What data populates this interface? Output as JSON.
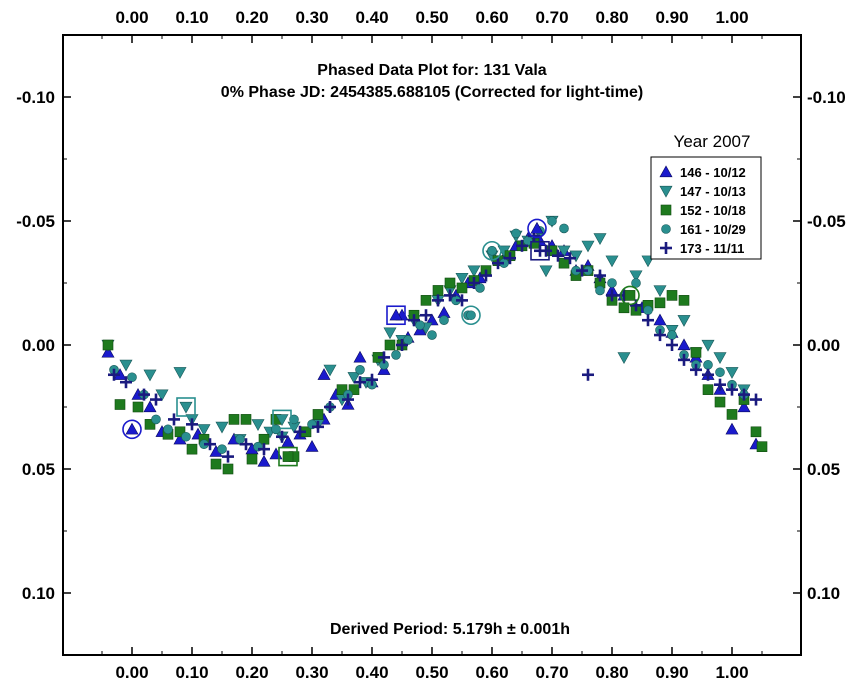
{
  "chart_data": {
    "type": "scatter",
    "title": "Phased Data Plot for: 131 Vala",
    "subtitle": "0% Phase JD:  2454385.688105   (Corrected for light-time)",
    "annotation": "Derived Period: 5.179h ± 0.001h",
    "xlabel": "",
    "ylabel": "",
    "xlim": [
      -0.115,
      1.115
    ],
    "ylim": [
      -0.125,
      0.125
    ],
    "y_inverted": true,
    "x_ticks": [
      "0.00",
      "0.10",
      "0.20",
      "0.30",
      "0.40",
      "0.50",
      "0.60",
      "0.70",
      "0.80",
      "0.90",
      "1.00"
    ],
    "x_tick_values": [
      0,
      0.1,
      0.2,
      0.3,
      0.4,
      0.5,
      0.6,
      0.7,
      0.8,
      0.9,
      1.0
    ],
    "y_ticks": [
      "-0.10",
      "-0.05",
      "0.00",
      "0.05",
      "0.10"
    ],
    "y_tick_values": [
      -0.1,
      -0.05,
      0,
      0.05,
      0.1
    ],
    "grid": false,
    "legend_title": "Year 2007",
    "legend_placement": "top-right",
    "series": [
      {
        "name": "146 - 10/12",
        "marker": "triangle-up",
        "color": "#1a1acc",
        "points": [
          [
            -0.04,
            0.003
          ],
          [
            -0.02,
            0.012
          ],
          [
            0.01,
            0.02
          ],
          [
            0.03,
            0.025
          ],
          [
            0.05,
            0.035
          ],
          [
            0.08,
            0.038
          ],
          [
            0.11,
            0.036
          ],
          [
            0.14,
            0.043
          ],
          [
            0.17,
            0.038
          ],
          [
            0.2,
            0.042
          ],
          [
            0.22,
            0.047
          ],
          [
            0.24,
            0.044
          ],
          [
            0.26,
            0.039
          ],
          [
            0.28,
            0.036
          ],
          [
            0.3,
            0.041
          ],
          [
            0.32,
            0.03
          ],
          [
            0.32,
            0.012
          ],
          [
            0.34,
            0.02
          ],
          [
            0.36,
            0.024
          ],
          [
            0.38,
            0.005
          ],
          [
            0.4,
            0.015
          ],
          [
            0.42,
            0.01
          ],
          [
            0.45,
            -0.012
          ],
          [
            0.46,
            -0.003
          ],
          [
            0.48,
            -0.006
          ],
          [
            0.5,
            -0.01
          ],
          [
            0.52,
            -0.013
          ],
          [
            0.54,
            -0.02
          ],
          [
            0.56,
            -0.025
          ],
          [
            0.58,
            -0.027
          ],
          [
            0.62,
            -0.035
          ],
          [
            0.64,
            -0.04
          ],
          [
            0.66,
            -0.043
          ],
          [
            0.68,
            -0.042
          ],
          [
            0.7,
            -0.04
          ],
          [
            0.72,
            -0.038
          ],
          [
            0.74,
            -0.03
          ],
          [
            0.76,
            -0.032
          ],
          [
            0.78,
            -0.027
          ],
          [
            0.8,
            -0.022
          ],
          [
            0.82,
            -0.02
          ],
          [
            0.85,
            -0.015
          ],
          [
            0.88,
            -0.01
          ],
          [
            0.9,
            -0.005
          ],
          [
            0.92,
            0.0
          ],
          [
            0.94,
            0.005
          ],
          [
            0.96,
            0.012
          ],
          [
            0.98,
            0.018
          ],
          [
            1.0,
            0.034
          ],
          [
            1.02,
            0.025
          ],
          [
            1.04,
            0.04
          ]
        ]
      },
      {
        "name": "147 - 10/13",
        "marker": "triangle-down",
        "color": "#2a8f8f",
        "points": [
          [
            -0.04,
            0.0
          ],
          [
            -0.01,
            0.008
          ],
          [
            0.03,
            0.012
          ],
          [
            0.05,
            0.02
          ],
          [
            0.08,
            0.011
          ],
          [
            0.1,
            0.03
          ],
          [
            0.12,
            0.034
          ],
          [
            0.15,
            0.033
          ],
          [
            0.18,
            0.038
          ],
          [
            0.21,
            0.032
          ],
          [
            0.23,
            0.035
          ],
          [
            0.25,
            0.037
          ],
          [
            0.27,
            0.033
          ],
          [
            0.31,
            0.032
          ],
          [
            0.33,
            0.01
          ],
          [
            0.35,
            0.022
          ],
          [
            0.37,
            0.013
          ],
          [
            0.39,
            0.015
          ],
          [
            0.41,
            0.006
          ],
          [
            0.43,
            -0.005
          ],
          [
            0.45,
            -0.002
          ],
          [
            0.47,
            -0.01
          ],
          [
            0.49,
            -0.007
          ],
          [
            0.51,
            -0.018
          ],
          [
            0.53,
            -0.022
          ],
          [
            0.55,
            -0.027
          ],
          [
            0.57,
            -0.03
          ],
          [
            0.6,
            -0.036
          ],
          [
            0.62,
            -0.038
          ],
          [
            0.64,
            -0.044
          ],
          [
            0.66,
            -0.042
          ],
          [
            0.69,
            -0.03
          ],
          [
            0.7,
            -0.05
          ],
          [
            0.72,
            -0.038
          ],
          [
            0.74,
            -0.036
          ],
          [
            0.76,
            -0.04
          ],
          [
            0.78,
            -0.043
          ],
          [
            0.8,
            -0.034
          ],
          [
            0.82,
            0.005
          ],
          [
            0.84,
            -0.028
          ],
          [
            0.86,
            -0.034
          ],
          [
            0.88,
            -0.022
          ],
          [
            0.9,
            -0.006
          ],
          [
            0.92,
            -0.01
          ],
          [
            0.94,
            0.003
          ],
          [
            0.96,
            0.0
          ],
          [
            0.98,
            0.005
          ],
          [
            1.0,
            0.011
          ],
          [
            1.02,
            0.018
          ]
        ]
      },
      {
        "name": "152 - 10/18",
        "marker": "square",
        "color": "#1e7a1e",
        "points": [
          [
            -0.04,
            0.0
          ],
          [
            -0.02,
            0.024
          ],
          [
            0.01,
            0.025
          ],
          [
            0.03,
            0.032
          ],
          [
            0.06,
            0.036
          ],
          [
            0.08,
            0.035
          ],
          [
            0.1,
            0.042
          ],
          [
            0.12,
            0.038
          ],
          [
            0.14,
            0.048
          ],
          [
            0.16,
            0.05
          ],
          [
            0.17,
            0.03
          ],
          [
            0.19,
            0.03
          ],
          [
            0.2,
            0.046
          ],
          [
            0.22,
            0.038
          ],
          [
            0.24,
            0.03
          ],
          [
            0.27,
            0.045
          ],
          [
            0.29,
            0.035
          ],
          [
            0.31,
            0.028
          ],
          [
            0.35,
            0.018
          ],
          [
            0.37,
            0.018
          ],
          [
            0.41,
            0.005
          ],
          [
            0.43,
            0.0
          ],
          [
            0.45,
            0.0
          ],
          [
            0.47,
            -0.012
          ],
          [
            0.49,
            -0.018
          ],
          [
            0.51,
            -0.022
          ],
          [
            0.53,
            -0.025
          ],
          [
            0.55,
            -0.023
          ],
          [
            0.57,
            -0.026
          ],
          [
            0.59,
            -0.03
          ],
          [
            0.61,
            -0.034
          ],
          [
            0.63,
            -0.036
          ],
          [
            0.65,
            -0.04
          ],
          [
            0.67,
            -0.041
          ],
          [
            0.7,
            -0.038
          ],
          [
            0.72,
            -0.033
          ],
          [
            0.74,
            -0.028
          ],
          [
            0.76,
            -0.03
          ],
          [
            0.78,
            -0.025
          ],
          [
            0.8,
            -0.018
          ],
          [
            0.82,
            -0.015
          ],
          [
            0.84,
            -0.014
          ],
          [
            0.86,
            -0.016
          ],
          [
            0.88,
            -0.017
          ],
          [
            0.9,
            -0.02
          ],
          [
            0.92,
            -0.018
          ],
          [
            0.94,
            0.003
          ],
          [
            0.96,
            0.018
          ],
          [
            0.98,
            0.023
          ],
          [
            1.0,
            0.028
          ],
          [
            1.02,
            0.022
          ],
          [
            1.04,
            0.035
          ],
          [
            1.05,
            0.041
          ]
        ]
      },
      {
        "name": "161 - 10/29",
        "marker": "circle",
        "color": "#2a8f8f",
        "points": [
          [
            -0.03,
            0.01
          ],
          [
            0.0,
            0.013
          ],
          [
            0.02,
            0.02
          ],
          [
            0.04,
            0.03
          ],
          [
            0.06,
            0.034
          ],
          [
            0.09,
            0.037
          ],
          [
            0.12,
            0.04
          ],
          [
            0.15,
            0.042
          ],
          [
            0.18,
            0.038
          ],
          [
            0.21,
            0.041
          ],
          [
            0.24,
            0.034
          ],
          [
            0.27,
            0.03
          ],
          [
            0.3,
            0.032
          ],
          [
            0.33,
            0.025
          ],
          [
            0.36,
            0.02
          ],
          [
            0.38,
            0.01
          ],
          [
            0.4,
            0.016
          ],
          [
            0.42,
            0.008
          ],
          [
            0.44,
            0.004
          ],
          [
            0.46,
            -0.002
          ],
          [
            0.48,
            -0.008
          ],
          [
            0.5,
            -0.004
          ],
          [
            0.52,
            -0.01
          ],
          [
            0.54,
            -0.018
          ],
          [
            0.56,
            -0.012
          ],
          [
            0.58,
            -0.023
          ],
          [
            0.6,
            -0.038
          ],
          [
            0.62,
            -0.033
          ],
          [
            0.64,
            -0.045
          ],
          [
            0.66,
            -0.042
          ],
          [
            0.68,
            -0.046
          ],
          [
            0.7,
            -0.05
          ],
          [
            0.72,
            -0.047
          ],
          [
            0.74,
            -0.03
          ],
          [
            0.76,
            -0.03
          ],
          [
            0.78,
            -0.022
          ],
          [
            0.8,
            -0.025
          ],
          [
            0.82,
            -0.02
          ],
          [
            0.84,
            -0.025
          ],
          [
            0.86,
            -0.014
          ],
          [
            0.88,
            -0.006
          ],
          [
            0.9,
            -0.004
          ],
          [
            0.92,
            0.004
          ],
          [
            0.94,
            0.008
          ],
          [
            0.96,
            0.008
          ],
          [
            0.98,
            0.011
          ],
          [
            1.0,
            0.016
          ],
          [
            1.02,
            0.02
          ]
        ]
      },
      {
        "name": "173 - 11/11",
        "marker": "plus",
        "color": "#1a1a7f",
        "points": [
          [
            -0.03,
            0.012
          ],
          [
            -0.01,
            0.015
          ],
          [
            0.02,
            0.02
          ],
          [
            0.04,
            0.022
          ],
          [
            0.07,
            0.03
          ],
          [
            0.1,
            0.032
          ],
          [
            0.13,
            0.04
          ],
          [
            0.16,
            0.045
          ],
          [
            0.19,
            0.04
          ],
          [
            0.22,
            0.042
          ],
          [
            0.25,
            0.037
          ],
          [
            0.28,
            0.035
          ],
          [
            0.31,
            0.033
          ],
          [
            0.33,
            0.025
          ],
          [
            0.36,
            0.022
          ],
          [
            0.38,
            0.015
          ],
          [
            0.4,
            0.014
          ],
          [
            0.42,
            0.005
          ],
          [
            0.45,
            0.0
          ],
          [
            0.47,
            -0.01
          ],
          [
            0.49,
            -0.012
          ],
          [
            0.51,
            -0.018
          ],
          [
            0.53,
            -0.02
          ],
          [
            0.55,
            -0.018
          ],
          [
            0.57,
            -0.025
          ],
          [
            0.59,
            -0.028
          ],
          [
            0.61,
            -0.033
          ],
          [
            0.63,
            -0.035
          ],
          [
            0.65,
            -0.04
          ],
          [
            0.67,
            -0.044
          ],
          [
            0.69,
            -0.038
          ],
          [
            0.71,
            -0.036
          ],
          [
            0.73,
            -0.035
          ],
          [
            0.75,
            -0.03
          ],
          [
            0.76,
            0.012
          ],
          [
            0.78,
            -0.028
          ],
          [
            0.8,
            -0.02
          ],
          [
            0.82,
            -0.02
          ],
          [
            0.84,
            -0.016
          ],
          [
            0.86,
            -0.01
          ],
          [
            0.88,
            -0.004
          ],
          [
            0.9,
            0.0
          ],
          [
            0.92,
            0.006
          ],
          [
            0.94,
            0.01
          ],
          [
            0.96,
            0.012
          ],
          [
            0.98,
            0.016
          ],
          [
            1.0,
            0.018
          ],
          [
            1.02,
            0.02
          ],
          [
            1.04,
            0.022
          ]
        ]
      }
    ],
    "highlighted_points": [
      {
        "series": "146 - 10/12",
        "marker": "triangle-up",
        "ring": "circle",
        "x": 0.0,
        "y": 0.034
      },
      {
        "series": "147 - 10/13",
        "marker": "triangle-down",
        "ring": "square",
        "x": 0.09,
        "y": 0.025
      },
      {
        "series": "147 - 10/13",
        "marker": "triangle-down",
        "ring": "square",
        "x": 0.25,
        "y": 0.03
      },
      {
        "series": "152 - 10/18",
        "marker": "square",
        "ring": "square",
        "x": 0.26,
        "y": 0.045
      },
      {
        "series": "146 - 10/12",
        "marker": "triangle-up",
        "ring": "square",
        "x": 0.44,
        "y": -0.012
      },
      {
        "series": "161 - 10/29",
        "marker": "circle",
        "ring": "circle",
        "x": 0.565,
        "y": -0.012
      },
      {
        "series": "161 - 10/29",
        "marker": "circle",
        "ring": "circle",
        "x": 0.6,
        "y": -0.038
      },
      {
        "series": "146 - 10/12",
        "marker": "triangle-up",
        "ring": "circle",
        "x": 0.675,
        "y": -0.047
      },
      {
        "series": "173 - 11/11",
        "marker": "plus",
        "ring": "square",
        "x": 0.68,
        "y": -0.038
      },
      {
        "series": "152 - 10/18",
        "marker": "square",
        "ring": "circle",
        "x": 0.83,
        "y": -0.02
      }
    ]
  }
}
